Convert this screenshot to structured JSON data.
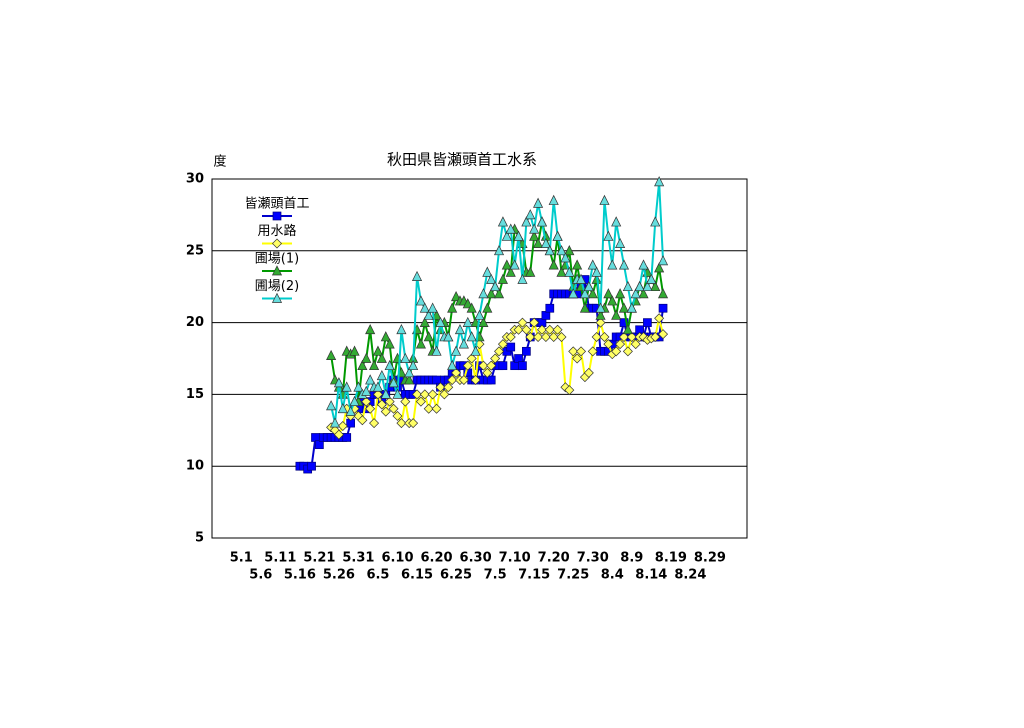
{
  "chart_data": {
    "type": "line",
    "title": "秋田県皆瀬頭首工水系",
    "y_label": "度",
    "categories": [
      null,
      null,
      null,
      null,
      null,
      null,
      null,
      "5.1",
      null,
      null,
      null,
      null,
      "5.6",
      null,
      null,
      null,
      null,
      "5.11",
      null,
      null,
      null,
      null,
      "5.16",
      null,
      null,
      null,
      null,
      "5.21",
      null,
      null,
      null,
      null,
      "5.26",
      null,
      null,
      null,
      null,
      "5.31",
      null,
      null,
      null,
      null,
      "6.5",
      null,
      null,
      null,
      null,
      "6.10",
      null,
      null,
      null,
      null,
      "6.15",
      null,
      null,
      null,
      null,
      "6.20",
      null,
      null,
      null,
      null,
      "6.25",
      null,
      null,
      null,
      null,
      "6.30",
      null,
      null,
      null,
      null,
      "7.5",
      null,
      null,
      null,
      null,
      "7.10",
      null,
      null,
      null,
      null,
      "7.15",
      null,
      null,
      null,
      null,
      "7.20",
      null,
      null,
      null,
      null,
      "7.25",
      null,
      null,
      null,
      null,
      "7.30",
      null,
      null,
      null,
      null,
      "8.4",
      null,
      null,
      null,
      null,
      "8.9",
      null,
      null,
      null,
      null,
      "8.14",
      null,
      null,
      null,
      null,
      "8.19",
      null,
      null,
      null,
      null,
      "8.24",
      null,
      null,
      null,
      null,
      "8.29",
      null,
      null,
      null,
      null,
      null,
      null,
      null,
      null,
      null
    ],
    "ylim": [
      5,
      30
    ],
    "yticks": [
      5,
      10,
      15,
      20,
      25,
      30
    ],
    "grid": true,
    "series": [
      {
        "name": "皆瀬頭首工",
        "color": "#0000cc",
        "marker": "square",
        "values": [
          null,
          null,
          null,
          null,
          null,
          null,
          null,
          null,
          null,
          null,
          null,
          null,
          null,
          null,
          null,
          null,
          null,
          null,
          null,
          null,
          null,
          null,
          10,
          10,
          9.8,
          10,
          12,
          11.5,
          12,
          12,
          12,
          12,
          12,
          12,
          12,
          13,
          14,
          14,
          14.5,
          14,
          14.5,
          15,
          15,
          14.5,
          15,
          15.5,
          16,
          15.5,
          16,
          15,
          15,
          15,
          16,
          16,
          16,
          16,
          16,
          16,
          15.5,
          16,
          16,
          16.5,
          16.5,
          17,
          17,
          16.5,
          16,
          16,
          17,
          16,
          16,
          16,
          17,
          17,
          17,
          18,
          18.3,
          17,
          17.5,
          17,
          18,
          19,
          20,
          20,
          20,
          20.5,
          21,
          22,
          22,
          22,
          22,
          22,
          22,
          22,
          22.5,
          23,
          21,
          21,
          21,
          18,
          18,
          18,
          18.5,
          19,
          19,
          20,
          19,
          19,
          19,
          19.5,
          19,
          20,
          19,
          19,
          19,
          21,
          null,
          null,
          null,
          null,
          null,
          null,
          null,
          null,
          null,
          null,
          null,
          null,
          null,
          null,
          null,
          null,
          null,
          null,
          null,
          null,
          null
        ]
      },
      {
        "name": "用水路",
        "color": "#ffff00",
        "marker": "diamond",
        "values": [
          null,
          null,
          null,
          null,
          null,
          null,
          null,
          null,
          null,
          null,
          null,
          null,
          null,
          null,
          null,
          null,
          null,
          null,
          null,
          null,
          null,
          null,
          null,
          null,
          null,
          null,
          null,
          null,
          null,
          null,
          12.7,
          12.5,
          12.2,
          12.8,
          14,
          13.5,
          14,
          13.5,
          13.2,
          14.5,
          14,
          13,
          15,
          14.3,
          13.8,
          14.5,
          14,
          13.5,
          13,
          14.5,
          13,
          13,
          15,
          14.5,
          15,
          14,
          15,
          14,
          15.5,
          15,
          15.5,
          16,
          16.5,
          16,
          16,
          17,
          17.5,
          16,
          18.5,
          17,
          16.5,
          17,
          17.5,
          18,
          18.5,
          19,
          19,
          19.5,
          19.5,
          20,
          19.5,
          19,
          20,
          19,
          19.5,
          19,
          19.5,
          19,
          19.5,
          19,
          15.5,
          15.3,
          18,
          17.5,
          18,
          16.2,
          16.5,
          18,
          19,
          20,
          19,
          18.5,
          17.8,
          18,
          18.5,
          19,
          18,
          19,
          18.5,
          19,
          19,
          18.8,
          18.9,
          19,
          20.3,
          19.2,
          null,
          null,
          null,
          null,
          null,
          null,
          null,
          null,
          null,
          null,
          null,
          null,
          null,
          null,
          null,
          null,
          null,
          null,
          null,
          null,
          null
        ]
      },
      {
        "name": "圃場(1)",
        "color": "#009900",
        "marker": "triangle",
        "values": [
          null,
          null,
          null,
          null,
          null,
          null,
          null,
          null,
          null,
          null,
          null,
          null,
          null,
          null,
          null,
          null,
          null,
          null,
          null,
          null,
          null,
          null,
          null,
          null,
          null,
          null,
          null,
          null,
          null,
          null,
          17.7,
          16,
          15.5,
          15,
          18,
          17.8,
          18,
          14.5,
          17,
          17.5,
          19.5,
          17,
          18,
          17.5,
          19,
          18.5,
          16,
          17.5,
          16.5,
          16,
          16,
          17.5,
          19.5,
          18.5,
          20,
          19,
          18,
          20.5,
          19.5,
          20,
          19,
          21,
          21.8,
          21.5,
          21.5,
          21.3,
          21,
          20,
          19,
          20,
          21,
          22,
          22.5,
          22,
          23,
          24,
          23.5,
          26.5,
          26,
          25.5,
          23.5,
          23.5,
          26,
          25.5,
          27,
          26,
          25,
          24,
          26,
          23.5,
          24,
          25,
          22.5,
          24,
          22.5,
          21,
          22.5,
          22,
          23,
          20.5,
          21,
          22,
          21.5,
          20.5,
          22,
          21,
          19.5,
          21,
          21.5,
          22.5,
          22,
          23.5,
          23,
          22.5,
          23.8,
          22,
          null,
          null,
          null,
          null,
          null,
          null,
          null,
          null,
          null,
          null,
          null,
          null,
          null,
          null,
          null,
          null,
          null,
          null,
          null,
          null,
          null
        ]
      },
      {
        "name": "圃場(2)",
        "color": "#00cccc",
        "marker": "triangle",
        "values": [
          null,
          null,
          null,
          null,
          null,
          null,
          null,
          null,
          null,
          null,
          null,
          null,
          null,
          null,
          null,
          null,
          null,
          null,
          null,
          null,
          null,
          null,
          null,
          null,
          null,
          null,
          null,
          null,
          null,
          null,
          14.2,
          13,
          15.8,
          14,
          15.5,
          13.8,
          14.5,
          15.5,
          15,
          15.2,
          16,
          15.5,
          15.5,
          16.3,
          15,
          17,
          15.8,
          15,
          19.5,
          17.5,
          16.5,
          17,
          23.2,
          21.5,
          21,
          20.5,
          21,
          18,
          20,
          19,
          19,
          17,
          18,
          19.5,
          18.5,
          20,
          19,
          18,
          20.5,
          22,
          23.5,
          23,
          22.5,
          25,
          27,
          26,
          26.5,
          24,
          26,
          23,
          27,
          27.5,
          26.5,
          28.3,
          27,
          25.5,
          25,
          28.5,
          26,
          25,
          24.5,
          23.5,
          22,
          23,
          23,
          22,
          22.5,
          24,
          23.5,
          21,
          28.5,
          26,
          24,
          27,
          25.5,
          24,
          22.5,
          21,
          22,
          22.5,
          24,
          22.5,
          23,
          27,
          29.8,
          24.3,
          null,
          null,
          null,
          null,
          null,
          null,
          null,
          null,
          null,
          null,
          null,
          null,
          null,
          null,
          null,
          null,
          null,
          null,
          null,
          null,
          null
        ]
      }
    ]
  }
}
